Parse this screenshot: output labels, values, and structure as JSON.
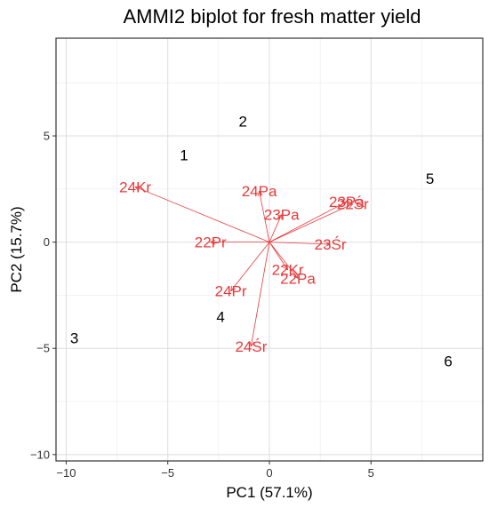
{
  "chart_data": {
    "type": "scatter",
    "subtype": "biplot",
    "title": "AMMI2 biplot for fresh matter yield",
    "xlabel": "PC1 (57.1%)",
    "ylabel": "PC2 (15.7%)",
    "xlim": [
      -10.5,
      10.5
    ],
    "ylim": [
      -10.3,
      9.6
    ],
    "x_ticks": [
      -10,
      -5,
      0,
      5
    ],
    "x_tick_labels": [
      "−10",
      "−5",
      "0",
      "5"
    ],
    "y_ticks": [
      -10,
      -5,
      0,
      5
    ],
    "y_tick_labels": [
      "−10",
      "−5",
      "0",
      "5"
    ],
    "grid": true,
    "legend": "none",
    "arrow_color": "#e8393a",
    "genotype_color": "#000000",
    "genotypes": [
      {
        "label": "1",
        "x": -4.2,
        "y": 4.1
      },
      {
        "label": "2",
        "x": -1.3,
        "y": 5.7
      },
      {
        "label": "3",
        "x": -9.6,
        "y": -4.5
      },
      {
        "label": "4",
        "x": -2.4,
        "y": -3.5
      },
      {
        "label": "5",
        "x": 7.9,
        "y": 3.0
      },
      {
        "label": "6",
        "x": 8.8,
        "y": -5.6
      }
    ],
    "environments": [
      {
        "label": "24Kr",
        "x": -6.6,
        "y": 2.6
      },
      {
        "label": "24Pa",
        "x": -0.5,
        "y": 2.4
      },
      {
        "label": "23Pa",
        "x": 0.6,
        "y": 1.3
      },
      {
        "label": "23Pa",
        "x": 3.8,
        "y": 1.9
      },
      {
        "label": "22Śr",
        "x": 4.1,
        "y": 1.8
      },
      {
        "label": "22Pr",
        "x": -2.9,
        "y": 0.0
      },
      {
        "label": "23Śr",
        "x": 3.0,
        "y": -0.1
      },
      {
        "label": "22Kr",
        "x": 0.9,
        "y": -1.3
      },
      {
        "label": "22Pa",
        "x": 1.4,
        "y": -1.7
      },
      {
        "label": "24Pr",
        "x": -1.9,
        "y": -2.3
      },
      {
        "label": "24Śr",
        "x": -0.9,
        "y": -4.9
      }
    ]
  }
}
